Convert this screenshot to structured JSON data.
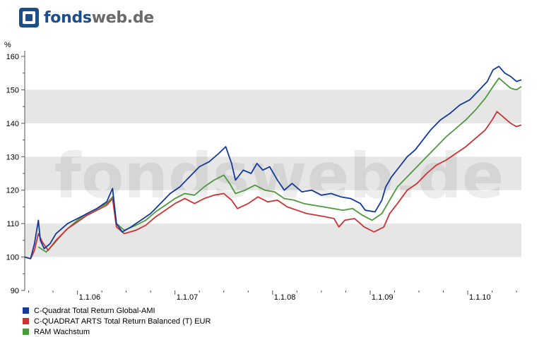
{
  "brand": {
    "name_part1": "fonds",
    "name_part2": "web.de",
    "watermark": "fondsweb.de"
  },
  "chart_data": {
    "type": "line",
    "ylabel": "%",
    "ylim": [
      90,
      160
    ],
    "yticks": [
      90,
      100,
      110,
      120,
      130,
      140,
      150,
      160
    ],
    "xlim": [
      2005.46,
      2010.55
    ],
    "xticks": [
      {
        "label": "1.1.06",
        "x": 2006.0
      },
      {
        "label": "1.1.07",
        "x": 2007.0
      },
      {
        "label": "1.1.08",
        "x": 2008.0
      },
      {
        "label": "1.1.09",
        "x": 2009.0
      },
      {
        "label": "1.1.10",
        "x": 2010.0
      }
    ],
    "grid": "alternating horizontal bands",
    "legend_position": "bottom-left",
    "series": [
      {
        "name": "C-Quadrat Total Return Global-AMI",
        "color": "#13399a",
        "points": [
          [
            2005.46,
            100
          ],
          [
            2005.52,
            99.5
          ],
          [
            2005.56,
            104
          ],
          [
            2005.6,
            111
          ],
          [
            2005.62,
            105
          ],
          [
            2005.66,
            102.5
          ],
          [
            2005.72,
            104
          ],
          [
            2005.78,
            107
          ],
          [
            2005.9,
            110
          ],
          [
            2006.0,
            111.5
          ],
          [
            2006.1,
            113
          ],
          [
            2006.2,
            114.5
          ],
          [
            2006.3,
            116.5
          ],
          [
            2006.36,
            120.5
          ],
          [
            2006.4,
            110
          ],
          [
            2006.46,
            107.5
          ],
          [
            2006.55,
            109
          ],
          [
            2006.65,
            111
          ],
          [
            2006.75,
            113
          ],
          [
            2006.85,
            116
          ],
          [
            2006.95,
            119
          ],
          [
            2007.05,
            121
          ],
          [
            2007.15,
            124
          ],
          [
            2007.25,
            127
          ],
          [
            2007.35,
            128.5
          ],
          [
            2007.45,
            131
          ],
          [
            2007.52,
            133
          ],
          [
            2007.58,
            128
          ],
          [
            2007.62,
            123
          ],
          [
            2007.7,
            126
          ],
          [
            2007.78,
            125
          ],
          [
            2007.84,
            128
          ],
          [
            2007.9,
            126
          ],
          [
            2007.97,
            127
          ],
          [
            2008.05,
            123
          ],
          [
            2008.12,
            120
          ],
          [
            2008.2,
            122
          ],
          [
            2008.3,
            119.5
          ],
          [
            2008.4,
            120
          ],
          [
            2008.5,
            118.5
          ],
          [
            2008.6,
            119
          ],
          [
            2008.7,
            118
          ],
          [
            2008.8,
            117.5
          ],
          [
            2008.9,
            116
          ],
          [
            2008.95,
            114
          ],
          [
            2009.05,
            113.5
          ],
          [
            2009.12,
            117
          ],
          [
            2009.16,
            121
          ],
          [
            2009.22,
            124
          ],
          [
            2009.3,
            127
          ],
          [
            2009.38,
            130
          ],
          [
            2009.46,
            132
          ],
          [
            2009.54,
            135
          ],
          [
            2009.62,
            138
          ],
          [
            2009.72,
            141
          ],
          [
            2009.82,
            143
          ],
          [
            2009.92,
            145.5
          ],
          [
            2010.02,
            147
          ],
          [
            2010.12,
            150
          ],
          [
            2010.2,
            152.5
          ],
          [
            2010.26,
            156
          ],
          [
            2010.32,
            157
          ],
          [
            2010.38,
            155
          ],
          [
            2010.44,
            154
          ],
          [
            2010.5,
            152.5
          ],
          [
            2010.55,
            153
          ]
        ]
      },
      {
        "name": "C-QUADRAT ARTS Total Return Balanced (T) EUR",
        "color": "#cc3333",
        "points": [
          [
            2005.46,
            100
          ],
          [
            2005.52,
            99.5
          ],
          [
            2005.56,
            102
          ],
          [
            2005.6,
            107
          ],
          [
            2005.64,
            104.5
          ],
          [
            2005.7,
            102
          ],
          [
            2005.78,
            105
          ],
          [
            2005.9,
            108.5
          ],
          [
            2006.0,
            110.5
          ],
          [
            2006.1,
            112.5
          ],
          [
            2006.2,
            114
          ],
          [
            2006.3,
            115.5
          ],
          [
            2006.36,
            117.5
          ],
          [
            2006.4,
            109
          ],
          [
            2006.48,
            107
          ],
          [
            2006.6,
            108
          ],
          [
            2006.7,
            109.5
          ],
          [
            2006.8,
            112
          ],
          [
            2006.9,
            114
          ],
          [
            2007.0,
            116
          ],
          [
            2007.1,
            117.5
          ],
          [
            2007.2,
            116
          ],
          [
            2007.3,
            117.5
          ],
          [
            2007.4,
            118.5
          ],
          [
            2007.5,
            119
          ],
          [
            2007.58,
            117
          ],
          [
            2007.64,
            114.5
          ],
          [
            2007.75,
            116
          ],
          [
            2007.85,
            118
          ],
          [
            2007.95,
            116.5
          ],
          [
            2008.05,
            117
          ],
          [
            2008.15,
            115
          ],
          [
            2008.25,
            114
          ],
          [
            2008.35,
            113
          ],
          [
            2008.45,
            112.5
          ],
          [
            2008.55,
            112
          ],
          [
            2008.63,
            111.5
          ],
          [
            2008.68,
            109
          ],
          [
            2008.74,
            111
          ],
          [
            2008.84,
            111.5
          ],
          [
            2008.94,
            109
          ],
          [
            2009.04,
            107.5
          ],
          [
            2009.14,
            109
          ],
          [
            2009.2,
            113
          ],
          [
            2009.28,
            116
          ],
          [
            2009.38,
            120
          ],
          [
            2009.48,
            122
          ],
          [
            2009.58,
            125
          ],
          [
            2009.68,
            127.5
          ],
          [
            2009.78,
            129
          ],
          [
            2009.88,
            131
          ],
          [
            2009.98,
            133
          ],
          [
            2010.08,
            135.5
          ],
          [
            2010.18,
            138
          ],
          [
            2010.25,
            141
          ],
          [
            2010.3,
            143.5
          ],
          [
            2010.36,
            142
          ],
          [
            2010.44,
            140
          ],
          [
            2010.5,
            139
          ],
          [
            2010.55,
            139.5
          ]
        ]
      },
      {
        "name": "RAM Wachstum",
        "color": "#4c9a3c",
        "points": [
          [
            2005.6,
            103
          ],
          [
            2005.68,
            101.5
          ],
          [
            2005.76,
            104
          ],
          [
            2005.88,
            108
          ],
          [
            2006.0,
            111
          ],
          [
            2006.1,
            113
          ],
          [
            2006.2,
            114.5
          ],
          [
            2006.3,
            116
          ],
          [
            2006.36,
            118
          ],
          [
            2006.4,
            110
          ],
          [
            2006.48,
            108
          ],
          [
            2006.6,
            109.5
          ],
          [
            2006.7,
            111
          ],
          [
            2006.8,
            113.5
          ],
          [
            2006.9,
            115.5
          ],
          [
            2007.0,
            117.5
          ],
          [
            2007.1,
            119
          ],
          [
            2007.2,
            118.5
          ],
          [
            2007.3,
            121
          ],
          [
            2007.4,
            123
          ],
          [
            2007.5,
            124.5
          ],
          [
            2007.56,
            122
          ],
          [
            2007.62,
            119
          ],
          [
            2007.72,
            120
          ],
          [
            2007.82,
            121.5
          ],
          [
            2007.92,
            120
          ],
          [
            2008.02,
            119.5
          ],
          [
            2008.12,
            117.5
          ],
          [
            2008.22,
            117
          ],
          [
            2008.32,
            116
          ],
          [
            2008.42,
            115.5
          ],
          [
            2008.52,
            115
          ],
          [
            2008.62,
            114.5
          ],
          [
            2008.72,
            114
          ],
          [
            2008.82,
            114.5
          ],
          [
            2008.92,
            112.5
          ],
          [
            2009.02,
            111
          ],
          [
            2009.12,
            113
          ],
          [
            2009.2,
            117
          ],
          [
            2009.28,
            121
          ],
          [
            2009.38,
            124
          ],
          [
            2009.48,
            127
          ],
          [
            2009.58,
            130
          ],
          [
            2009.68,
            133
          ],
          [
            2009.78,
            136
          ],
          [
            2009.88,
            138.5
          ],
          [
            2009.98,
            141
          ],
          [
            2010.08,
            144
          ],
          [
            2010.18,
            147.5
          ],
          [
            2010.26,
            151
          ],
          [
            2010.32,
            153.5
          ],
          [
            2010.38,
            152
          ],
          [
            2010.44,
            150.5
          ],
          [
            2010.5,
            150
          ],
          [
            2010.55,
            151
          ]
        ]
      }
    ]
  }
}
